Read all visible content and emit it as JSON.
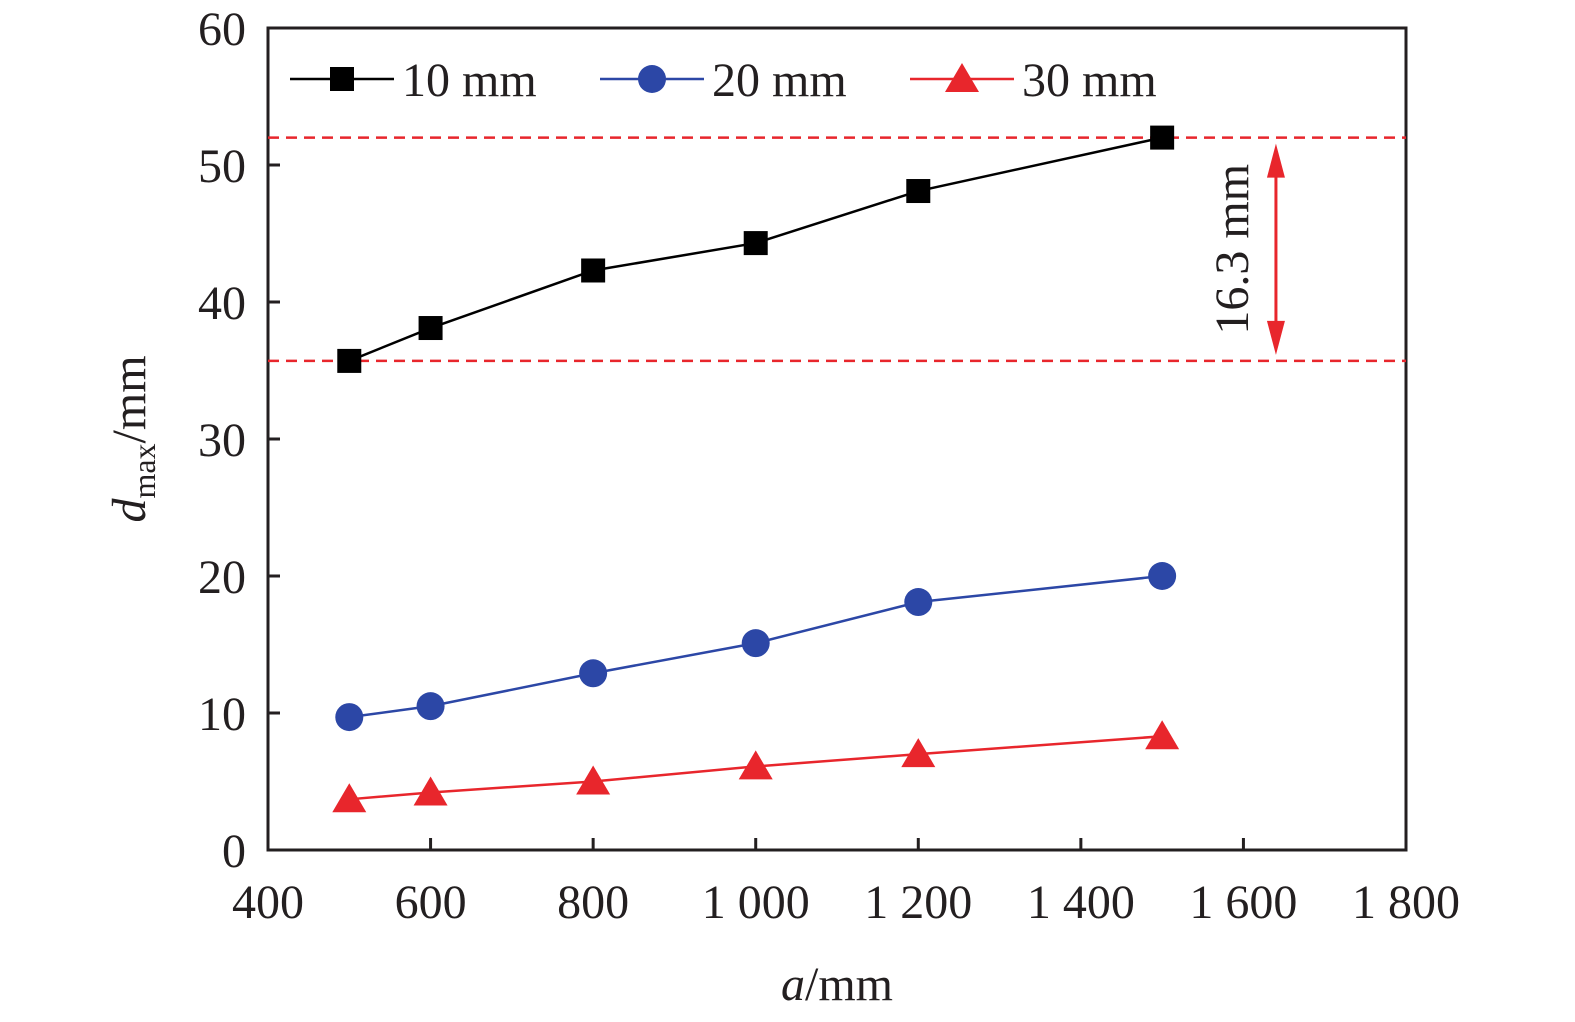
{
  "chart_data": {
    "type": "line",
    "xlabel": {
      "italic": "a",
      "rest": "/mm"
    },
    "ylabel": {
      "italic": "d",
      "sub": "max",
      "rest": "/mm"
    },
    "xlim": [
      400,
      1800
    ],
    "ylim": [
      0,
      60
    ],
    "x_ticks": [
      400,
      600,
      800,
      1000,
      1200,
      1400,
      1600,
      1800
    ],
    "x_tick_labels": [
      "400",
      "600",
      "800",
      "1 000",
      "1 200",
      "1 400",
      "1 600",
      "1 800"
    ],
    "y_ticks": [
      0,
      10,
      20,
      30,
      40,
      50,
      60
    ],
    "y_tick_labels": [
      "0",
      "10",
      "20",
      "30",
      "40",
      "50",
      "60"
    ],
    "grid": false,
    "legend_position": "top",
    "x": [
      500,
      600,
      800,
      1000,
      1200,
      1500
    ],
    "series": [
      {
        "name": "10 mm",
        "color": "#000000",
        "marker": "square",
        "values": [
          35.7,
          38.1,
          42.3,
          44.3,
          48.1,
          52.0
        ]
      },
      {
        "name": "20 mm",
        "color": "#2c47a6",
        "marker": "circle",
        "values": [
          9.7,
          10.5,
          12.9,
          15.1,
          18.1,
          20.0
        ]
      },
      {
        "name": "30 mm",
        "color": "#e8262c",
        "marker": "triangle",
        "values": [
          3.7,
          4.2,
          5.0,
          6.1,
          7.0,
          8.3
        ]
      }
    ],
    "annotations": [
      {
        "type": "hline",
        "y": 52.0,
        "style": "dashed",
        "color": "#e8262c"
      },
      {
        "type": "hline",
        "y": 35.7,
        "style": "dashed",
        "color": "#e8262c"
      },
      {
        "type": "double-arrow",
        "x": 1640,
        "y_from": 35.7,
        "y_to": 52.0,
        "color": "#e8262c",
        "label": "16.3 mm"
      }
    ]
  }
}
